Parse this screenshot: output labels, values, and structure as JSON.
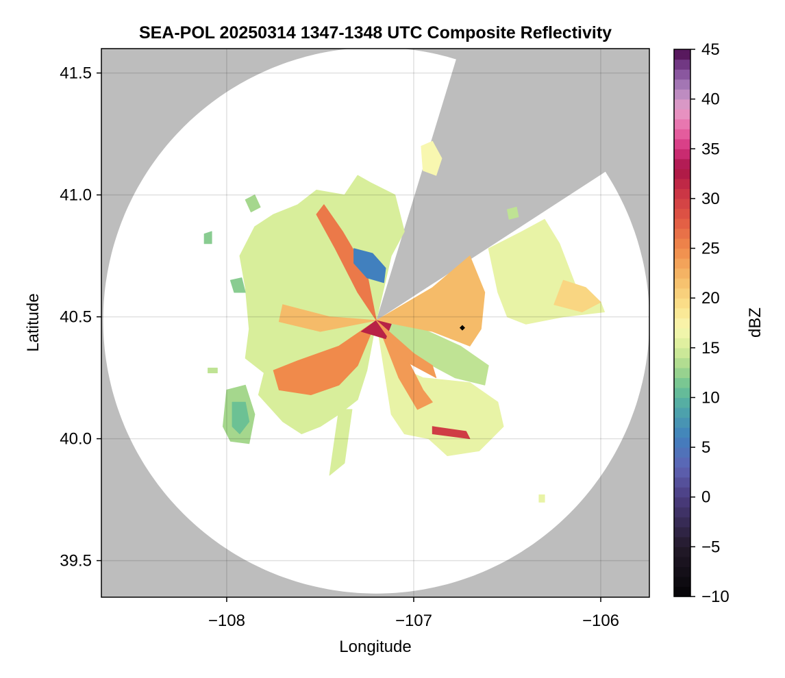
{
  "chart_data": {
    "type": "heatmap",
    "title": "SEA-POL 20250314 1347-1348 UTC Composite Reflectivity",
    "xlabel": "Longitude",
    "ylabel": "Latitude",
    "xlim": [
      -108.67,
      -105.74
    ],
    "ylim": [
      39.35,
      41.6
    ],
    "xticks": [
      -108,
      -107,
      -106
    ],
    "xtick_labels": [
      "−108",
      "−107",
      "−106"
    ],
    "yticks": [
      39.5,
      40.0,
      40.5,
      41.0,
      41.5
    ],
    "ytick_labels": [
      "39.5",
      "40.0",
      "40.5",
      "41.0",
      "41.5"
    ],
    "grid": true,
    "background_color": "#bdbdbd",
    "no_echo_color": "#ffffff",
    "radar": {
      "center": [
        -107.2,
        40.485
      ],
      "range_radius_deg": 1.12,
      "blocked_sectors_deg_azimuth": [
        [
          17,
          57
        ]
      ]
    },
    "colorbar": {
      "label": "dBZ",
      "min": -10,
      "max": 45,
      "step": 1,
      "ticks": [
        -10,
        -5,
        0,
        5,
        10,
        15,
        20,
        25,
        30,
        35,
        40,
        45
      ],
      "tick_labels": [
        "−10",
        "−5",
        "0",
        "5",
        "10",
        "15",
        "20",
        "25",
        "30",
        "35",
        "40",
        "45"
      ],
      "colormap_stops": [
        {
          "v": -10,
          "c": "#050406"
        },
        {
          "v": -5,
          "c": "#231a2a"
        },
        {
          "v": 0,
          "c": "#4b3c80"
        },
        {
          "v": 3,
          "c": "#5e63b4"
        },
        {
          "v": 6,
          "c": "#4180be"
        },
        {
          "v": 9,
          "c": "#4fa8a8"
        },
        {
          "v": 11,
          "c": "#6cc194"
        },
        {
          "v": 13,
          "c": "#a5d78d"
        },
        {
          "v": 15,
          "c": "#d8ee9b"
        },
        {
          "v": 17,
          "c": "#f8f7b0"
        },
        {
          "v": 19,
          "c": "#fbe48e"
        },
        {
          "v": 22,
          "c": "#f5bb69"
        },
        {
          "v": 25,
          "c": "#f08a4b"
        },
        {
          "v": 28,
          "c": "#e05844"
        },
        {
          "v": 31,
          "c": "#c72f45"
        },
        {
          "v": 33,
          "c": "#a81447"
        },
        {
          "v": 35,
          "c": "#d4327d"
        },
        {
          "v": 37,
          "c": "#e96aa8"
        },
        {
          "v": 39,
          "c": "#e69ec8"
        },
        {
          "v": 41,
          "c": "#b086be"
        },
        {
          "v": 43,
          "c": "#7d4795"
        },
        {
          "v": 45,
          "c": "#4c0a4c"
        }
      ]
    },
    "echo_regions": [
      {
        "name": "main-echo-mass",
        "dbz": 15,
        "polygon": [
          [
            -107.23,
            41.05
          ],
          [
            -107.3,
            41.08
          ],
          [
            -107.37,
            41.0
          ],
          [
            -107.52,
            41.02
          ],
          [
            -107.62,
            40.96
          ],
          [
            -107.75,
            40.92
          ],
          [
            -107.85,
            40.87
          ],
          [
            -107.93,
            40.75
          ],
          [
            -107.9,
            40.62
          ],
          [
            -107.88,
            40.45
          ],
          [
            -107.9,
            40.33
          ],
          [
            -107.8,
            40.27
          ],
          [
            -107.83,
            40.18
          ],
          [
            -107.7,
            40.07
          ],
          [
            -107.6,
            40.02
          ],
          [
            -107.5,
            40.05
          ],
          [
            -107.4,
            40.1
          ],
          [
            -107.3,
            40.16
          ],
          [
            -107.25,
            40.28
          ],
          [
            -107.2,
            40.485
          ],
          [
            -107.12,
            40.75
          ],
          [
            -107.05,
            40.85
          ],
          [
            -107.1,
            41.0
          ]
        ]
      },
      {
        "name": "southwest-cell",
        "dbz": 13,
        "polygon": [
          [
            -108.0,
            40.2
          ],
          [
            -107.9,
            40.22
          ],
          [
            -107.85,
            40.1
          ],
          [
            -107.88,
            39.98
          ],
          [
            -107.98,
            39.99
          ],
          [
            -108.02,
            40.05
          ]
        ]
      },
      {
        "name": "southwest-core",
        "dbz": 11,
        "polygon": [
          [
            -107.97,
            40.15
          ],
          [
            -107.9,
            40.15
          ],
          [
            -107.88,
            40.07
          ],
          [
            -107.93,
            40.02
          ],
          [
            -107.97,
            40.05
          ]
        ]
      },
      {
        "name": "south-echo",
        "dbz": 16,
        "polygon": [
          [
            -107.2,
            40.485
          ],
          [
            -107.1,
            40.3
          ],
          [
            -106.95,
            40.25
          ],
          [
            -106.7,
            40.23
          ],
          [
            -106.55,
            40.15
          ],
          [
            -106.52,
            40.05
          ],
          [
            -106.65,
            39.95
          ],
          [
            -106.82,
            39.93
          ],
          [
            -106.92,
            40.0
          ],
          [
            -107.05,
            40.02
          ],
          [
            -107.12,
            40.1
          ]
        ]
      },
      {
        "name": "southeast-band",
        "dbz": 14,
        "polygon": [
          [
            -107.2,
            40.485
          ],
          [
            -106.95,
            40.45
          ],
          [
            -106.75,
            40.38
          ],
          [
            -106.6,
            40.3
          ],
          [
            -106.62,
            40.22
          ],
          [
            -106.78,
            40.25
          ],
          [
            -106.95,
            40.32
          ],
          [
            -107.1,
            40.4
          ]
        ]
      },
      {
        "name": "south-streaks",
        "dbz": 15,
        "polygon": [
          [
            -107.4,
            40.12
          ],
          [
            -107.33,
            40.12
          ],
          [
            -107.37,
            39.9
          ],
          [
            -107.45,
            39.85
          ]
        ]
      },
      {
        "name": "east-wedge",
        "dbz": 22,
        "polygon": [
          [
            -107.2,
            40.485
          ],
          [
            -106.9,
            40.62
          ],
          [
            -106.7,
            40.75
          ],
          [
            -106.62,
            40.6
          ],
          [
            -106.64,
            40.45
          ],
          [
            -106.7,
            40.38
          ],
          [
            -106.9,
            40.44
          ]
        ]
      },
      {
        "name": "northeast-echo",
        "dbz": 16,
        "polygon": [
          [
            -106.6,
            40.78
          ],
          [
            -106.42,
            40.85
          ],
          [
            -106.3,
            40.9
          ],
          [
            -106.22,
            40.8
          ],
          [
            -106.12,
            40.6
          ],
          [
            -106.0,
            40.56
          ],
          [
            -105.98,
            40.52
          ],
          [
            -106.2,
            40.5
          ],
          [
            -106.4,
            40.47
          ],
          [
            -106.5,
            40.5
          ],
          [
            -106.55,
            40.6
          ]
        ]
      },
      {
        "name": "northeast-core",
        "dbz": 20,
        "polygon": [
          [
            -106.2,
            40.65
          ],
          [
            -106.08,
            40.62
          ],
          [
            -106.0,
            40.56
          ],
          [
            -106.1,
            40.52
          ],
          [
            -106.25,
            40.55
          ]
        ]
      },
      {
        "name": "north-strip",
        "dbz": 17,
        "polygon": [
          [
            -106.96,
            41.2
          ],
          [
            -106.9,
            41.22
          ],
          [
            -106.85,
            41.15
          ],
          [
            -106.88,
            41.08
          ],
          [
            -106.95,
            41.1
          ]
        ]
      },
      {
        "name": "west-fleck",
        "dbz": 12,
        "polygon": [
          [
            -108.12,
            40.84
          ],
          [
            -108.08,
            40.85
          ],
          [
            -108.08,
            40.8
          ],
          [
            -108.12,
            40.8
          ]
        ]
      },
      {
        "name": "northwest-fleck",
        "dbz": 13,
        "polygon": [
          [
            -107.9,
            40.98
          ],
          [
            -107.85,
            41.0
          ],
          [
            -107.82,
            40.95
          ],
          [
            -107.87,
            40.93
          ]
        ]
      },
      {
        "name": "west-speck-1",
        "dbz": 12,
        "polygon": [
          [
            -107.98,
            40.65
          ],
          [
            -107.92,
            40.66
          ],
          [
            -107.9,
            40.6
          ],
          [
            -107.96,
            40.6
          ]
        ]
      },
      {
        "name": "far-southeast-speck",
        "dbz": 16,
        "polygon": [
          [
            -106.33,
            39.77
          ],
          [
            -106.3,
            39.77
          ],
          [
            -106.3,
            39.74
          ],
          [
            -106.33,
            39.74
          ]
        ]
      },
      {
        "name": "southwest-edge-speck",
        "dbz": 14,
        "polygon": [
          [
            -108.1,
            40.29
          ],
          [
            -108.05,
            40.29
          ],
          [
            -108.05,
            40.27
          ],
          [
            -108.1,
            40.27
          ]
        ]
      },
      {
        "name": "north-ridge-ne",
        "dbz": 14,
        "polygon": [
          [
            -106.5,
            40.94
          ],
          [
            -106.45,
            40.95
          ],
          [
            -106.44,
            40.91
          ],
          [
            -106.49,
            40.9
          ]
        ]
      },
      {
        "name": "inner-sw-warm",
        "dbz": 25,
        "polygon": [
          [
            -107.2,
            40.485
          ],
          [
            -107.4,
            40.38
          ],
          [
            -107.62,
            40.32
          ],
          [
            -107.75,
            40.28
          ],
          [
            -107.72,
            40.2
          ],
          [
            -107.55,
            40.18
          ],
          [
            -107.4,
            40.22
          ],
          [
            -107.3,
            40.3
          ]
        ]
      },
      {
        "name": "inner-nw-warm",
        "dbz": 26,
        "polygon": [
          [
            -107.2,
            40.485
          ],
          [
            -107.3,
            40.6
          ],
          [
            -107.42,
            40.78
          ],
          [
            -107.52,
            40.92
          ],
          [
            -107.48,
            40.96
          ],
          [
            -107.38,
            40.85
          ],
          [
            -107.25,
            40.68
          ]
        ]
      },
      {
        "name": "inner-w-warm",
        "dbz": 22,
        "polygon": [
          [
            -107.2,
            40.485
          ],
          [
            -107.45,
            40.5
          ],
          [
            -107.7,
            40.55
          ],
          [
            -107.72,
            40.48
          ],
          [
            -107.5,
            40.44
          ]
        ]
      },
      {
        "name": "inner-s-warm",
        "dbz": 24,
        "polygon": [
          [
            -107.2,
            40.485
          ],
          [
            -107.05,
            40.35
          ],
          [
            -106.95,
            40.2
          ],
          [
            -106.9,
            40.15
          ],
          [
            -106.98,
            40.12
          ],
          [
            -107.08,
            40.25
          ]
        ]
      },
      {
        "name": "ne-lake-blue",
        "dbz": 6,
        "polygon": [
          [
            -107.32,
            40.78
          ],
          [
            -107.22,
            40.76
          ],
          [
            -107.15,
            40.7
          ],
          [
            -107.16,
            40.64
          ],
          [
            -107.25,
            40.66
          ],
          [
            -107.32,
            40.72
          ]
        ]
      },
      {
        "name": "core-red",
        "dbz": 32,
        "polygon": [
          [
            -107.2,
            40.485
          ],
          [
            -107.28,
            40.44
          ],
          [
            -107.15,
            40.41
          ],
          [
            -107.12,
            40.47
          ]
        ]
      },
      {
        "name": "southeast-red",
        "dbz": 30,
        "polygon": [
          [
            -106.9,
            40.05
          ],
          [
            -106.72,
            40.03
          ],
          [
            -106.7,
            40.0
          ],
          [
            -106.9,
            40.02
          ]
        ]
      },
      {
        "name": "inner-se-warm",
        "dbz": 24,
        "polygon": [
          [
            -107.2,
            40.485
          ],
          [
            -107.0,
            40.35
          ],
          [
            -106.9,
            40.3
          ],
          [
            -106.88,
            40.25
          ],
          [
            -107.05,
            40.32
          ]
        ]
      }
    ],
    "point_marker": {
      "lon": -106.74,
      "lat": 40.455
    }
  }
}
